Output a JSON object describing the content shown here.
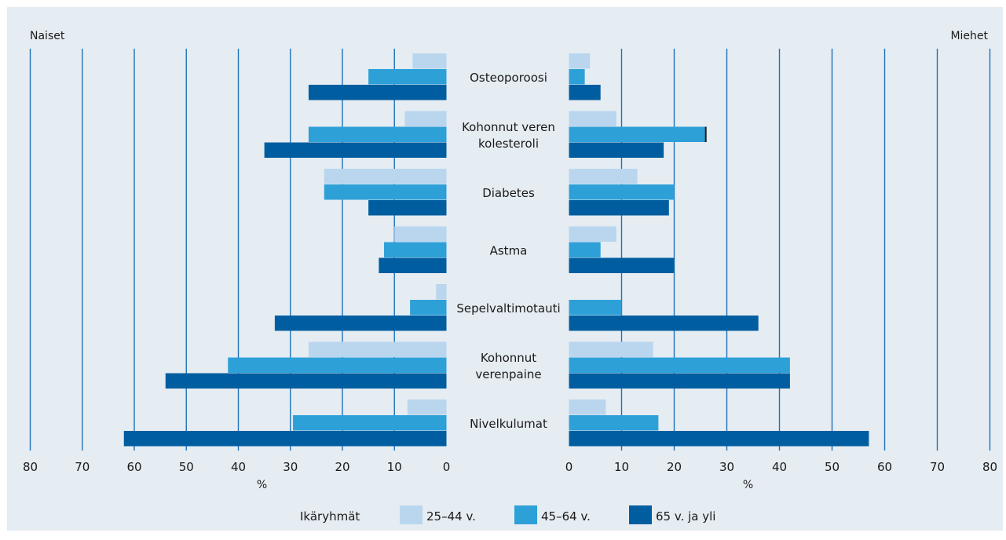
{
  "chart_data": {
    "type": "bar",
    "orientation": "horizontal-butterfly",
    "panels": [
      "Naiset",
      "Miehet"
    ],
    "categories": [
      "Osteoporoosi",
      "Kohonnut veren kolesteroli",
      "Diabetes",
      "Astma",
      "Sepelvaltimotauti",
      "Kohonnut verenpaine",
      "Nivelkulumat"
    ],
    "category_lines": [
      [
        "Osteoporoosi"
      ],
      [
        "Kohonnut veren",
        "kolesteroli"
      ],
      [
        "Diabetes"
      ],
      [
        "Astma"
      ],
      [
        "Sepelvaltimotauti"
      ],
      [
        "Kohonnut",
        "verenpaine"
      ],
      [
        "Nivelkulumat"
      ]
    ],
    "series": [
      {
        "name": "25–44 v.",
        "color": "#b9d6ee",
        "women": [
          6.5,
          8,
          23.5,
          10,
          2,
          26.5,
          7.5
        ],
        "men": [
          4,
          9,
          13,
          9,
          0,
          16,
          7
        ]
      },
      {
        "name": "45–64 v.",
        "color": "#2ea0d8",
        "women": [
          15,
          26.5,
          23.5,
          12,
          7,
          42,
          29.5
        ],
        "men": [
          3,
          26,
          20,
          6,
          10,
          42,
          17
        ]
      },
      {
        "name": "65 v. ja yli",
        "color": "#005ea0",
        "women": [
          26.5,
          35,
          15,
          13,
          33,
          54,
          62
        ],
        "men": [
          6,
          18,
          19,
          20,
          36,
          42,
          57
        ]
      }
    ],
    "xlim": [
      0,
      80
    ],
    "ticks": [
      0,
      10,
      20,
      30,
      40,
      50,
      60,
      70,
      80
    ],
    "xlabel": "%",
    "legend_title": "Ikäryhmät",
    "legend_position": "bottom-center",
    "grid": true,
    "colors": {
      "background": "#e5ecf2",
      "grid": "#1f72b8",
      "text": "#1a1a1a"
    }
  }
}
